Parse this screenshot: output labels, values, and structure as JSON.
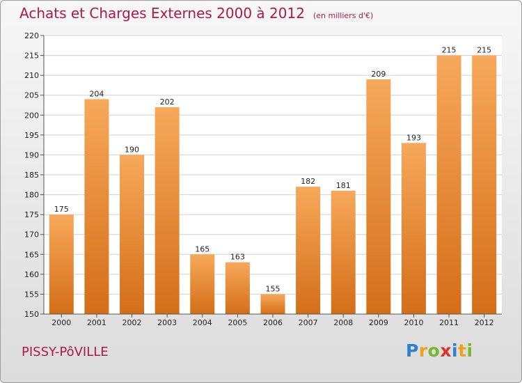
{
  "header": {
    "title": "Achats et Charges Externes 2000 à 2012",
    "subtitle": "(en milliers d'€)"
  },
  "footer": {
    "location": "PISSY-PôVILLE",
    "logo_text": "Proxiti"
  },
  "colors": {
    "title": "#b0174a",
    "bar_light": "#f7a85a",
    "bar_dark": "#d46e18",
    "grid": "#d0d0d0"
  },
  "chart_data": {
    "type": "bar",
    "title": "Achats et Charges Externes 2000 à 2012",
    "subtitle": "(en milliers d'€)",
    "xlabel": "",
    "ylabel": "",
    "categories": [
      "2000",
      "2001",
      "2002",
      "2003",
      "2004",
      "2005",
      "2006",
      "2007",
      "2008",
      "2009",
      "2010",
      "2011",
      "2012"
    ],
    "values": [
      175,
      204,
      190,
      202,
      165,
      163,
      155,
      182,
      181,
      209,
      193,
      215,
      215
    ],
    "ylim": [
      150,
      220
    ],
    "yticks": [
      150,
      155,
      160,
      165,
      170,
      175,
      180,
      185,
      190,
      195,
      200,
      205,
      210,
      215,
      220
    ],
    "grid": true,
    "legend": "none"
  }
}
